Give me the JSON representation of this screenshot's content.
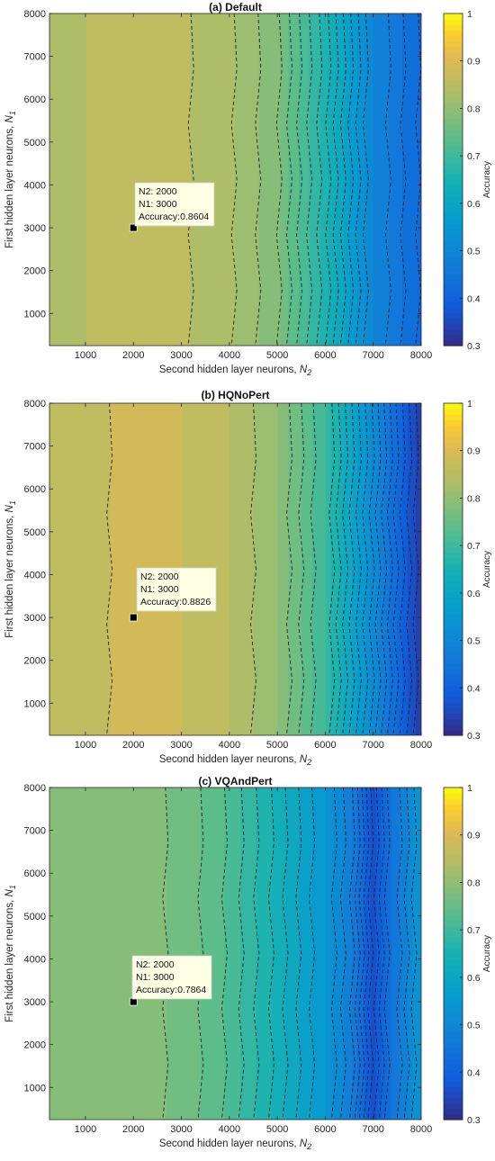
{
  "chart_data": [
    {
      "type": "contour",
      "title": "(a) Default",
      "xlabel": "Second hidden layer neurons,",
      "xlabel_var": "N",
      "xlabel_sub": "2",
      "ylabel": "First hidden layer neurons,",
      "ylabel_var": "N",
      "ylabel_sub": "1",
      "xlim": [
        250,
        8000
      ],
      "ylim": [
        250,
        8000
      ],
      "xticks": [
        1000,
        2000,
        3000,
        4000,
        5000,
        6000,
        7000,
        8000
      ],
      "yticks": [
        1000,
        2000,
        3000,
        4000,
        5000,
        6000,
        7000,
        8000
      ],
      "colorbar": {
        "label": "Accuracy",
        "range": [
          0.3,
          1.0
        ],
        "ticks": [
          0.3,
          0.4,
          0.5,
          0.6,
          0.7,
          0.8,
          0.9,
          1.0
        ]
      },
      "x": [
        250,
        1000,
        2000,
        3000,
        4000,
        5000,
        6000,
        7000,
        8000
      ],
      "column_accuracy": [
        0.84,
        0.85,
        0.86,
        0.855,
        0.83,
        0.78,
        0.66,
        0.5,
        0.42
      ],
      "marker": {
        "N2": 2000,
        "N1": 3000,
        "accuracy": 0.8604
      },
      "annotation_lines": [
        "N2: 2000",
        "N1: 3000",
        "Accuracy:0.8604"
      ]
    },
    {
      "type": "contour",
      "title": "(b) HQNoPert",
      "xlabel": "Second hidden layer neurons,",
      "xlabel_var": "N",
      "xlabel_sub": "2",
      "ylabel": "First hidden layer neurons,",
      "ylabel_var": "N",
      "ylabel_sub": "1",
      "xlim": [
        250,
        8000
      ],
      "ylim": [
        250,
        8000
      ],
      "xticks": [
        1000,
        2000,
        3000,
        4000,
        5000,
        6000,
        7000,
        8000
      ],
      "yticks": [
        1000,
        2000,
        3000,
        4000,
        5000,
        6000,
        7000,
        8000
      ],
      "colorbar": {
        "label": "Accuracy",
        "range": [
          0.3,
          1.0
        ],
        "ticks": [
          0.3,
          0.4,
          0.5,
          0.6,
          0.7,
          0.8,
          0.9,
          1.0
        ]
      },
      "x": [
        250,
        1000,
        2000,
        3000,
        4000,
        5000,
        6000,
        7000,
        7500,
        8000
      ],
      "column_accuracy": [
        0.85,
        0.87,
        0.88,
        0.875,
        0.85,
        0.8,
        0.7,
        0.52,
        0.42,
        0.33
      ],
      "marker": {
        "N2": 2000,
        "N1": 3000,
        "accuracy": 0.8826
      },
      "annotation_lines": [
        "N2: 2000",
        "N1: 3000",
        "Accuracy:0.8826"
      ]
    },
    {
      "type": "contour",
      "title": "(c) VQAndPert",
      "xlabel": "Second hidden layer neurons,",
      "xlabel_var": "N",
      "xlabel_sub": "2",
      "ylabel": "First hidden layer neurons,",
      "ylabel_var": "N",
      "ylabel_sub": "1",
      "xlim": [
        250,
        8000
      ],
      "ylim": [
        250,
        8000
      ],
      "xticks": [
        1000,
        2000,
        3000,
        4000,
        5000,
        6000,
        7000,
        8000
      ],
      "yticks": [
        1000,
        2000,
        3000,
        4000,
        5000,
        6000,
        7000,
        8000
      ],
      "colorbar": {
        "label": "Accuracy",
        "range": [
          0.3,
          1.0
        ],
        "ticks": [
          0.3,
          0.4,
          0.5,
          0.6,
          0.7,
          0.8,
          0.9,
          1.0
        ]
      },
      "x": [
        250,
        1000,
        2000,
        3000,
        4000,
        5000,
        6000,
        6600,
        7000,
        7400,
        8000
      ],
      "column_accuracy": [
        0.78,
        0.78,
        0.785,
        0.77,
        0.72,
        0.64,
        0.55,
        0.47,
        0.36,
        0.45,
        0.55
      ],
      "marker": {
        "N2": 2000,
        "N1": 3000,
        "accuracy": 0.7864
      },
      "annotation_lines": [
        "N2: 2000",
        "N1: 3000",
        "Accuracy:0.7864"
      ]
    }
  ]
}
